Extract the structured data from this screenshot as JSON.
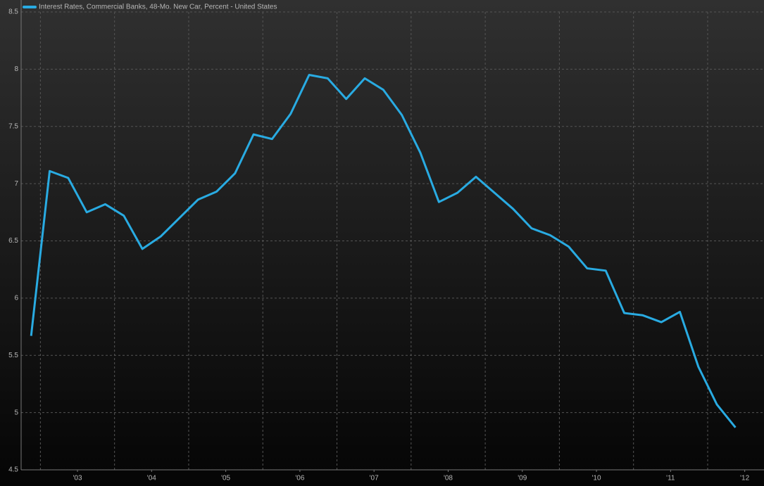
{
  "chart_data": {
    "type": "line",
    "legend": "top-left",
    "series": [
      {
        "name": "Interest Rates, Commercial Banks, 48-Mo. New Car, Percent - United States",
        "color": "#29abe2",
        "x": [
          2002.875,
          2003.125,
          2003.375,
          2003.625,
          2003.875,
          2004.125,
          2004.375,
          2004.625,
          2004.875,
          2005.125,
          2005.375,
          2005.625,
          2005.875,
          2006.125,
          2006.375,
          2006.625,
          2006.875,
          2007.125,
          2007.375,
          2007.625,
          2007.875,
          2008.125,
          2008.375,
          2008.625,
          2008.875,
          2009.125,
          2009.375,
          2009.625,
          2009.875,
          2010.125,
          2010.375,
          2010.625,
          2010.875,
          2011.125,
          2011.375,
          2011.625,
          2011.875,
          2012.125,
          2012.375
        ],
        "values": [
          5.67,
          7.11,
          7.05,
          6.75,
          6.82,
          6.72,
          6.43,
          6.54,
          6.7,
          6.86,
          6.93,
          7.09,
          7.43,
          7.39,
          7.61,
          7.95,
          7.92,
          7.74,
          7.92,
          7.82,
          7.6,
          7.27,
          6.84,
          6.92,
          7.06,
          6.92,
          6.78,
          6.61,
          6.55,
          6.45,
          6.26,
          6.24,
          5.87,
          5.85,
          5.79,
          5.88,
          5.4,
          5.07,
          4.87
        ]
      }
    ],
    "xlim": [
      2002.74,
      2012.76
    ],
    "xticks": [
      {
        "value": 2003.5,
        "label": "'03"
      },
      {
        "value": 2004.5,
        "label": "'04"
      },
      {
        "value": 2005.5,
        "label": "'05"
      },
      {
        "value": 2006.5,
        "label": "'06"
      },
      {
        "value": 2007.5,
        "label": "'07"
      },
      {
        "value": 2008.5,
        "label": "'08"
      },
      {
        "value": 2009.5,
        "label": "'09"
      },
      {
        "value": 2010.5,
        "label": "'10"
      },
      {
        "value": 2011.5,
        "label": "'11"
      },
      {
        "value": 2012.5,
        "label": "'12"
      }
    ],
    "xgrid": [
      2003,
      2004,
      2005,
      2006,
      2007,
      2008,
      2009,
      2010,
      2011,
      2012
    ],
    "ylim": [
      4.5,
      8.5
    ],
    "yticks": [
      4.5,
      5,
      5.5,
      6,
      6.5,
      7,
      7.5,
      8,
      8.5
    ],
    "grid": true
  }
}
